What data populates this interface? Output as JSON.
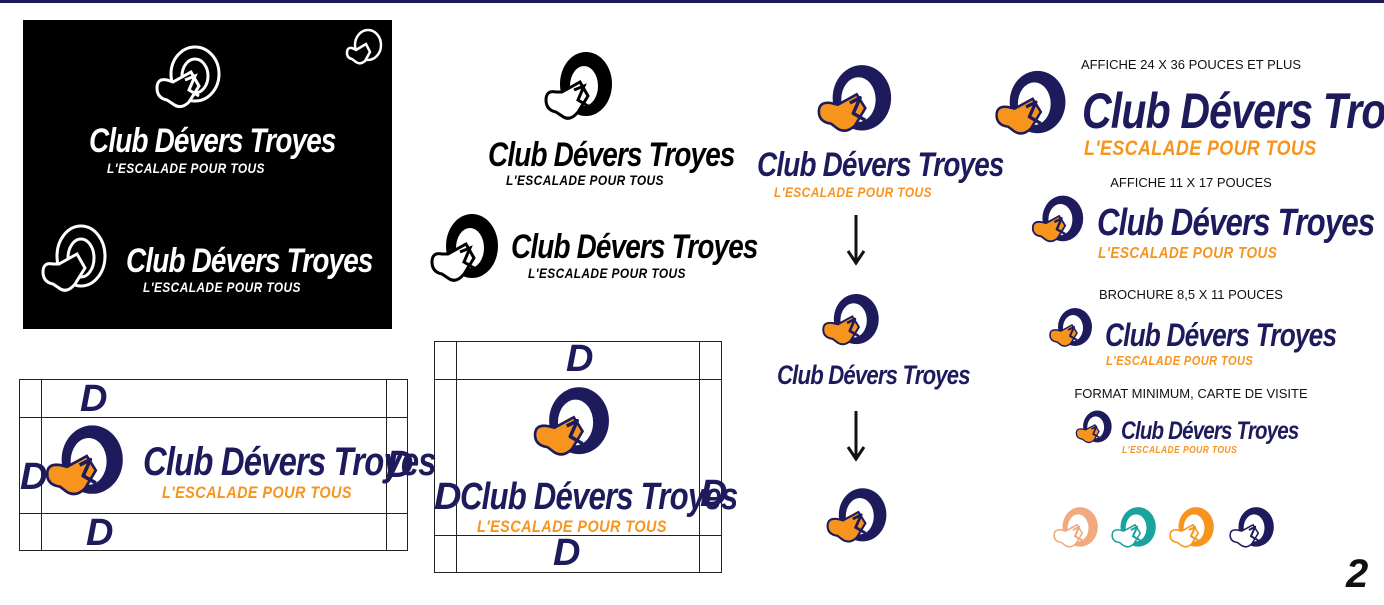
{
  "brand": {
    "name": "Club Dévers Troyes",
    "tagline": "L'ESCALADE POUR TOUS",
    "spacing_letter": "D"
  },
  "colors": {
    "navy": "#1e1b5c",
    "orange": "#f7941d",
    "black": "#000000",
    "white": "#ffffff",
    "peach": "#f2a97e",
    "teal": "#1aa39c"
  },
  "captions": {
    "size_1": "AFFICHE 24 X 36 POUCES ET PLUS",
    "size_2": "AFFICHE 11 X 17 POUCES",
    "size_3": "BROCHURE 8,5 X 11 POUCES",
    "size_4": "FORMAT MINIMUM, CARTE DE VISITE"
  },
  "icons": {
    "logo": "climbing-hold-logo-icon",
    "arrow": "arrow-down-icon"
  },
  "page_number": "2"
}
